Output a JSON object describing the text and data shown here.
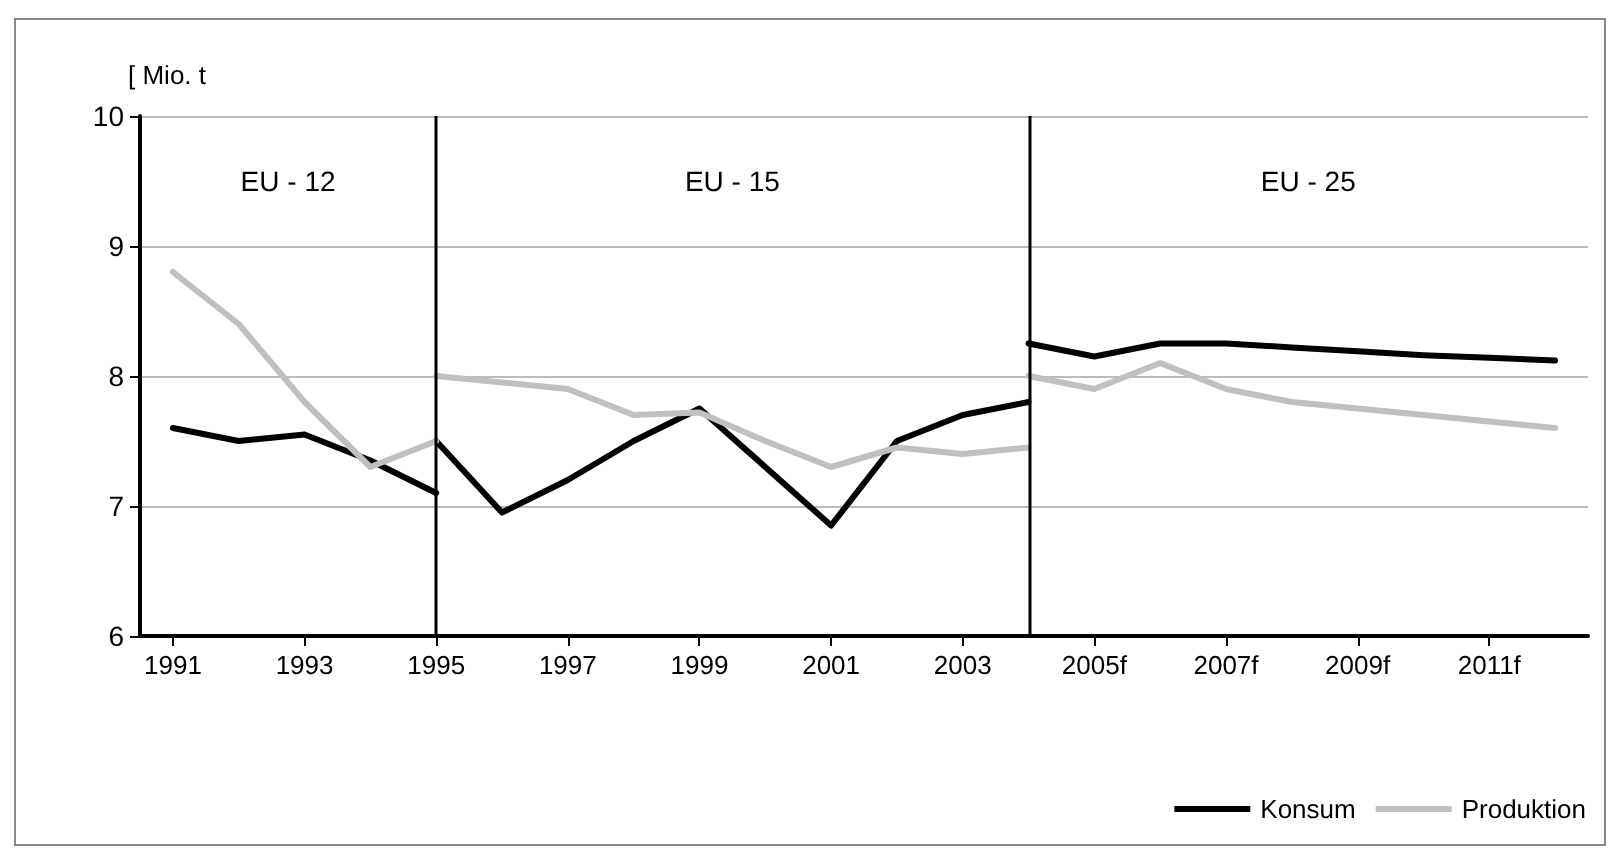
{
  "chart_data": {
    "type": "line",
    "ylabel": "[ Mio. t",
    "xlim": [
      1990.5,
      2012.5
    ],
    "xticks": [
      1991,
      1993,
      1995,
      1997,
      1999,
      2001,
      2003,
      {
        "value": 2005,
        "label": "2005f"
      },
      {
        "value": 2007,
        "label": "2007f"
      },
      {
        "value": 2009,
        "label": "2009f"
      },
      {
        "value": 2011,
        "label": "2011f"
      }
    ],
    "ylim": [
      6,
      10
    ],
    "yticks": [
      6,
      7,
      8,
      9,
      10
    ],
    "grid": "y",
    "legend": "bottom right",
    "marker": "none",
    "line_style": "solid",
    "ref_lines": [
      {
        "axis": "x",
        "value": 1995,
        "color": "#000000"
      },
      {
        "axis": "x",
        "value": 2004,
        "color": "#000000"
      }
    ],
    "annotations": [
      "EU - 12",
      "EU - 15",
      "EU - 25"
    ],
    "series": [
      {
        "name": "Konsum",
        "color": "#000000",
        "x": [
          1991,
          1992,
          1993,
          1994,
          1995,
          1995,
          1996,
          1997,
          1998,
          1999,
          2000,
          2001,
          2002,
          2003,
          2004,
          2004,
          2005,
          2006,
          2007,
          2008,
          2009,
          2010,
          2011,
          2012
        ],
        "values": [
          7.6,
          7.5,
          7.55,
          7.35,
          7.1,
          7.5,
          6.95,
          7.2,
          7.5,
          7.75,
          7.3,
          6.85,
          7.5,
          7.7,
          7.8,
          8.25,
          8.15,
          8.25,
          8.25,
          8.22,
          8.19,
          8.16,
          8.14,
          8.12
        ]
      },
      {
        "name": "Produktion",
        "color": "#c0c0c0",
        "x": [
          1991,
          1992,
          1993,
          1994,
          1995,
          1995,
          1996,
          1997,
          1998,
          1999,
          2000,
          2001,
          2002,
          2003,
          2004,
          2004,
          2005,
          2006,
          2007,
          2008,
          2009,
          2010,
          2011,
          2012
        ],
        "values": [
          8.8,
          8.4,
          7.8,
          7.3,
          7.5,
          8.0,
          7.95,
          7.9,
          7.7,
          7.72,
          7.5,
          7.3,
          7.45,
          7.4,
          7.45,
          8.0,
          7.9,
          8.1,
          7.9,
          7.8,
          7.75,
          7.7,
          7.65,
          7.6
        ]
      }
    ]
  }
}
